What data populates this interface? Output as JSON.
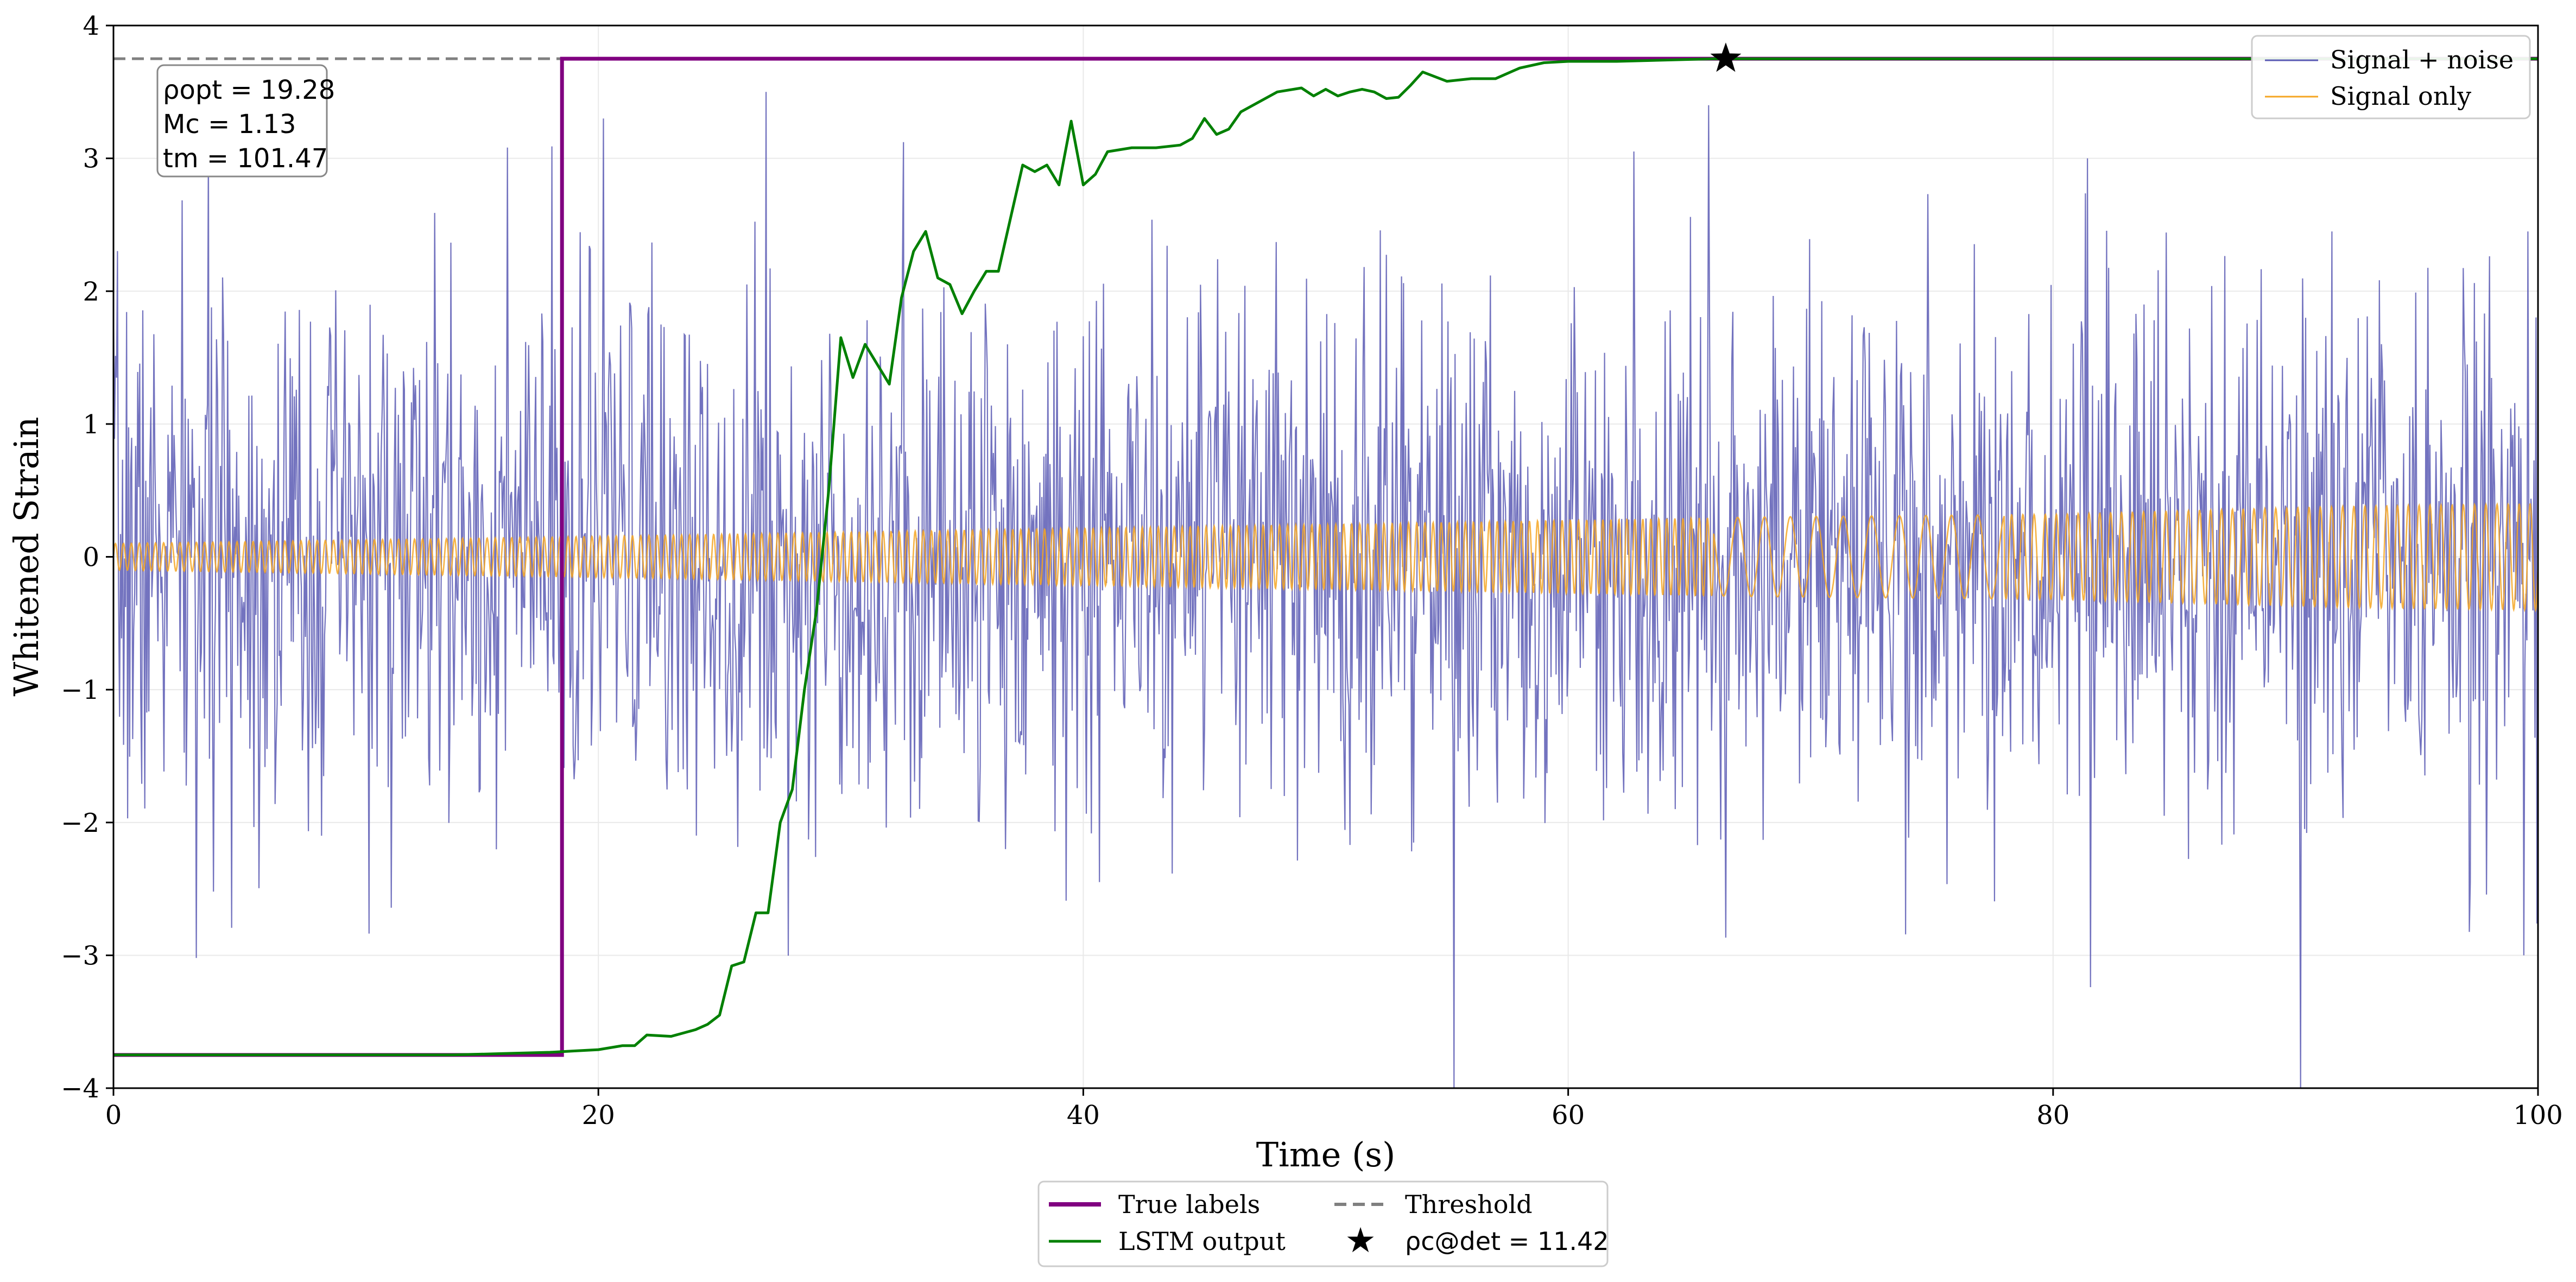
{
  "chart_data": {
    "type": "line",
    "title": "",
    "xlabel": "Time (s)",
    "ylabel": "Whitened Strain",
    "xlim": [
      0,
      100
    ],
    "ylim": [
      -4,
      4
    ],
    "grid": true,
    "x_ticks": [
      0,
      20,
      40,
      60,
      80,
      100
    ],
    "y_ticks": [
      -4,
      -3,
      -2,
      -1,
      0,
      1,
      2,
      3,
      4
    ],
    "x_tick_labels": [
      "0",
      "20",
      "40",
      "60",
      "80",
      "100"
    ],
    "y_tick_labels": [
      "−4",
      "−3",
      "−2",
      "−1",
      "0",
      "1",
      "2",
      "3",
      "4"
    ],
    "series": [
      {
        "name": "Signal + noise",
        "color": "#5a5ab4",
        "style": "noise",
        "amplitude": 1.0,
        "seed": 7,
        "samples": 2400,
        "spike_points": [
          [
            0.0,
            1.95
          ],
          [
            3.4,
            -3.02
          ],
          [
            18.5,
            1.95
          ],
          [
            20.2,
            3.3
          ],
          [
            26.9,
            3.5
          ],
          [
            55.3,
            -4.0
          ],
          [
            65.8,
            3.4
          ],
          [
            81.4,
            3.0
          ],
          [
            90.2,
            -4.0
          ],
          [
            91.5,
            2.45
          ],
          [
            99.4,
            -3.0
          ],
          [
            99.6,
            2.45
          ]
        ]
      },
      {
        "name": "Signal only",
        "color": "#f5a623",
        "style": "chirp",
        "segments": [
          [
            0,
            0.1
          ],
          [
            18.5,
            0.15
          ],
          [
            52,
            0.25
          ],
          [
            68,
            0.3
          ],
          [
            80,
            0.32
          ],
          [
            92,
            0.38
          ],
          [
            100,
            0.4
          ]
        ]
      },
      {
        "name": "True labels",
        "color": "#800080",
        "style": "step",
        "x": [
          0,
          18.5,
          18.5,
          100
        ],
        "y": [
          -3.75,
          -3.75,
          3.75,
          3.75
        ]
      },
      {
        "name": "LSTM output",
        "color": "#008000",
        "style": "line",
        "x": [
          0,
          5,
          10,
          14,
          16,
          18,
          19,
          20,
          21,
          21.5,
          22,
          23,
          24,
          24.5,
          25,
          25.5,
          26,
          26.5,
          27,
          27.5,
          28,
          28.5,
          29,
          29.5,
          30,
          30.5,
          31,
          31.5,
          32,
          32.5,
          33,
          33.5,
          34,
          34.5,
          35,
          35.5,
          36,
          36.5,
          37,
          37.5,
          38,
          38.5,
          39,
          39.5,
          40,
          40.5,
          41,
          42,
          43,
          44,
          44.5,
          45,
          45.5,
          46,
          46.5,
          47,
          48,
          49,
          49.5,
          50,
          50.5,
          51,
          51.5,
          52,
          52.5,
          53,
          53.5,
          54,
          55,
          56,
          57,
          58,
          59,
          60,
          62,
          64,
          66,
          70,
          80,
          90,
          100
        ],
        "y": [
          -3.75,
          -3.75,
          -3.75,
          -3.75,
          -3.74,
          -3.73,
          -3.72,
          -3.71,
          -3.68,
          -3.68,
          -3.6,
          -3.61,
          -3.56,
          -3.52,
          -3.45,
          -3.08,
          -3.05,
          -2.68,
          -2.68,
          -2.0,
          -1.75,
          -1.0,
          -0.4,
          0.5,
          1.65,
          1.35,
          1.6,
          1.45,
          1.3,
          1.95,
          2.3,
          2.45,
          2.1,
          2.05,
          1.83,
          2.0,
          2.15,
          2.15,
          2.55,
          2.95,
          2.9,
          2.95,
          2.8,
          3.28,
          2.8,
          2.88,
          3.05,
          3.08,
          3.08,
          3.1,
          3.15,
          3.3,
          3.18,
          3.22,
          3.35,
          3.4,
          3.5,
          3.53,
          3.47,
          3.52,
          3.47,
          3.5,
          3.52,
          3.5,
          3.45,
          3.46,
          3.55,
          3.65,
          3.58,
          3.6,
          3.6,
          3.68,
          3.72,
          3.73,
          3.73,
          3.74,
          3.75,
          3.75,
          3.75,
          3.75,
          3.75
        ]
      },
      {
        "name": "Threshold",
        "color": "#808080",
        "style": "dashed",
        "y": 3.75
      }
    ],
    "detection_marker": {
      "label": "ρc@det = 11.42",
      "x": 66.5,
      "y": 3.75,
      "color": "#000000",
      "marker": "star"
    },
    "annotation_box": {
      "lines": [
        "ρopt = 19.28",
        "Mc = 1.13",
        "tm = 101.47"
      ],
      "position": "top-left"
    },
    "legend_upper": {
      "position": "top-right",
      "entries": [
        "Signal + noise",
        "Signal only"
      ]
    },
    "legend_lower": {
      "position": "bottom-center",
      "entries": [
        "True labels",
        "Threshold",
        "LSTM output",
        "ρc@det = 11.42"
      ]
    }
  }
}
